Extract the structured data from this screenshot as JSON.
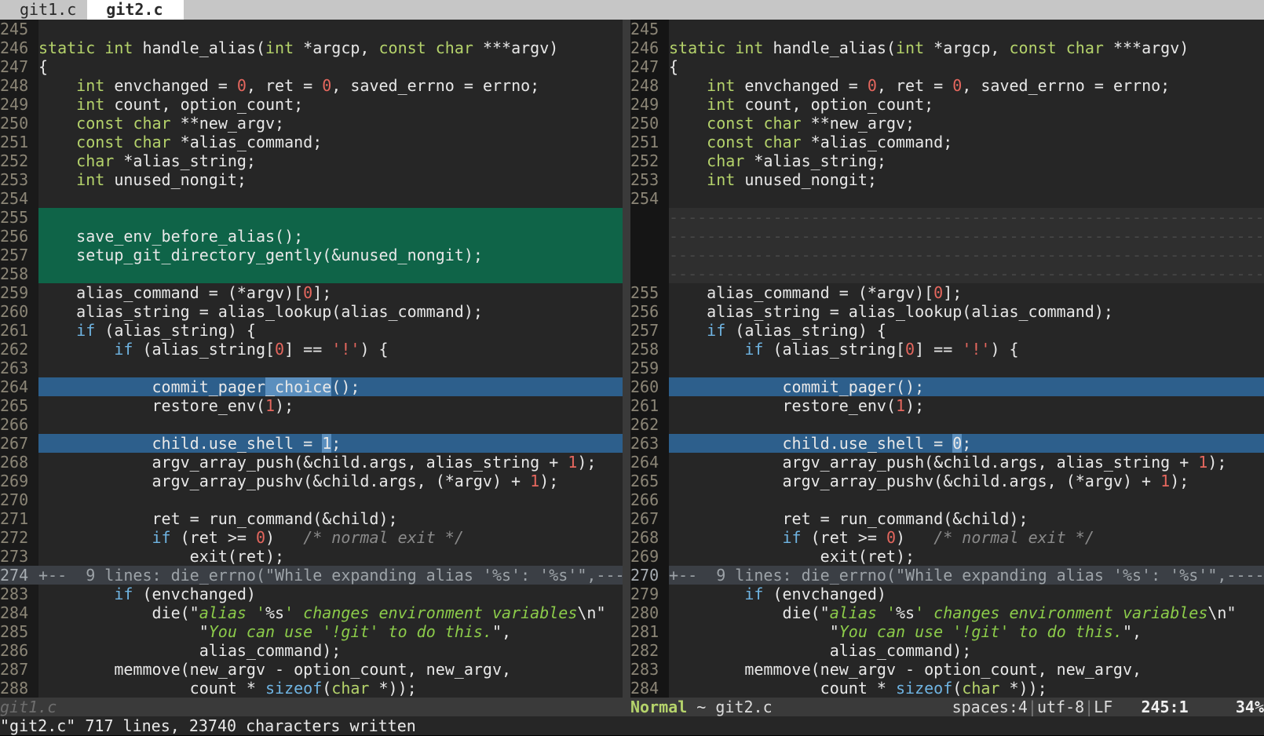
{
  "tabs": [
    {
      "label": "git1.c",
      "active": false
    },
    {
      "label": "git2.c",
      "active": true
    }
  ],
  "colors": {
    "bg": "#262626",
    "added": "#0f6448",
    "changed": "#2d5f8c",
    "changed_text": "#5b8fbe",
    "keyword": "#b5d36b",
    "control": "#6fb4e2",
    "number": "#e5675e",
    "string": "#8ccc4a"
  },
  "left": [
    {
      "n": "245",
      "s": []
    },
    {
      "n": "246",
      "s": [
        [
          "k",
          "static"
        ],
        [
          "",
          " "
        ],
        [
          "k",
          "int"
        ],
        [
          "",
          " handle_alias("
        ],
        [
          "k",
          "int"
        ],
        [
          "",
          " *argcp, "
        ],
        [
          "k",
          "const"
        ],
        [
          "",
          " "
        ],
        [
          "k",
          "char"
        ],
        [
          "",
          " ***argv)"
        ]
      ]
    },
    {
      "n": "247",
      "s": [
        [
          "",
          "{"
        ]
      ]
    },
    {
      "n": "248",
      "s": [
        [
          "",
          "    "
        ],
        [
          "k",
          "int"
        ],
        [
          "",
          " envchanged = "
        ],
        [
          "n",
          "0"
        ],
        [
          "",
          ", ret = "
        ],
        [
          "n",
          "0"
        ],
        [
          "",
          ", saved_errno = errno;"
        ]
      ]
    },
    {
      "n": "249",
      "s": [
        [
          "",
          "    "
        ],
        [
          "k",
          "int"
        ],
        [
          "",
          " count, option_count;"
        ]
      ]
    },
    {
      "n": "250",
      "s": [
        [
          "",
          "    "
        ],
        [
          "k",
          "const"
        ],
        [
          "",
          " "
        ],
        [
          "k",
          "char"
        ],
        [
          "",
          " **new_argv;"
        ]
      ]
    },
    {
      "n": "251",
      "s": [
        [
          "",
          "    "
        ],
        [
          "k",
          "const"
        ],
        [
          "",
          " "
        ],
        [
          "k",
          "char"
        ],
        [
          "",
          " *alias_command;"
        ]
      ]
    },
    {
      "n": "252",
      "s": [
        [
          "",
          "    "
        ],
        [
          "k",
          "char"
        ],
        [
          "",
          " *alias_string;"
        ]
      ]
    },
    {
      "n": "253",
      "s": [
        [
          "",
          "    "
        ],
        [
          "k",
          "int"
        ],
        [
          "",
          " unused_nongit;"
        ]
      ]
    },
    {
      "n": "254",
      "s": []
    },
    {
      "n": "255",
      "t": "add",
      "s": []
    },
    {
      "n": "256",
      "t": "add",
      "s": [
        [
          "",
          "    save_env_before_alias();"
        ]
      ]
    },
    {
      "n": "257",
      "t": "add",
      "s": [
        [
          "",
          "    setup_git_directory_gently(&unused_nongit);"
        ]
      ]
    },
    {
      "n": "258",
      "t": "add",
      "s": []
    },
    {
      "n": "259",
      "s": [
        [
          "",
          "    alias_command = (*argv)["
        ],
        [
          "n",
          "0"
        ],
        [
          "",
          "];"
        ]
      ]
    },
    {
      "n": "260",
      "s": [
        [
          "",
          "    alias_string = alias_lookup(alias_command);"
        ]
      ]
    },
    {
      "n": "261",
      "s": [
        [
          "",
          "    "
        ],
        [
          "c",
          "if"
        ],
        [
          "",
          " (alias_string) {"
        ]
      ]
    },
    {
      "n": "262",
      "s": [
        [
          "",
          "        "
        ],
        [
          "c",
          "if"
        ],
        [
          "",
          " (alias_string["
        ],
        [
          "n",
          "0"
        ],
        [
          "",
          "] == "
        ],
        [
          "n",
          "'!'"
        ],
        [
          "",
          ") {"
        ]
      ]
    },
    {
      "n": "263",
      "s": []
    },
    {
      "n": "264",
      "t": "chg",
      "s": [
        [
          "",
          "            commit_pager"
        ],
        [
          "t",
          "_choice"
        ],
        [
          "",
          "();"
        ]
      ]
    },
    {
      "n": "265",
      "s": [
        [
          "",
          "            restore_env("
        ],
        [
          "n",
          "1"
        ],
        [
          "",
          ");"
        ]
      ]
    },
    {
      "n": "266",
      "s": []
    },
    {
      "n": "267",
      "t": "chg",
      "s": [
        [
          "",
          "            child.use_shell = "
        ],
        [
          "t",
          "1"
        ],
        [
          "",
          ";"
        ]
      ]
    },
    {
      "n": "268",
      "s": [
        [
          "",
          "            argv_array_push(&child.args, alias_string + "
        ],
        [
          "n",
          "1"
        ],
        [
          "",
          ");"
        ]
      ]
    },
    {
      "n": "269",
      "s": [
        [
          "",
          "            argv_array_pushv(&child.args, (*argv) + "
        ],
        [
          "n",
          "1"
        ],
        [
          "",
          ");"
        ]
      ]
    },
    {
      "n": "270",
      "s": []
    },
    {
      "n": "271",
      "s": [
        [
          "",
          "            ret = run_command(&child);"
        ]
      ]
    },
    {
      "n": "272",
      "s": [
        [
          "",
          "            "
        ],
        [
          "c",
          "if"
        ],
        [
          "",
          " (ret >= "
        ],
        [
          "n",
          "0"
        ],
        [
          "",
          ")   "
        ],
        [
          "m",
          "/* normal exit */"
        ]
      ]
    },
    {
      "n": "273",
      "s": [
        [
          "",
          "                exit(ret);"
        ]
      ]
    },
    {
      "n": "274",
      "t": "fold",
      "s": [
        [
          "",
          "+--  9 lines: die_errno(\"While expanding alias '%s': '%s'\",---------------"
        ]
      ]
    },
    {
      "n": "283",
      "s": [
        [
          "",
          "        "
        ],
        [
          "c",
          "if"
        ],
        [
          "",
          " (envchanged)"
        ]
      ]
    },
    {
      "n": "284",
      "s": [
        [
          "",
          "            die(\""
        ],
        [
          "s",
          "alias '"
        ],
        [
          "",
          "%s"
        ],
        [
          "s",
          "' changes environment variables"
        ],
        [
          "",
          "\\n\""
        ]
      ]
    },
    {
      "n": "285",
      "s": [
        [
          "",
          "                 \""
        ],
        [
          "s",
          "You can use '!git' to do this."
        ],
        [
          "",
          "\","
        ]
      ]
    },
    {
      "n": "286",
      "s": [
        [
          "",
          "                 alias_command);"
        ]
      ]
    },
    {
      "n": "287",
      "s": [
        [
          "",
          "        memmove(new_argv - option_count, new_argv,"
        ]
      ]
    },
    {
      "n": "288",
      "s": [
        [
          "",
          "                count * "
        ],
        [
          "c",
          "sizeof"
        ],
        [
          "",
          "("
        ],
        [
          "k",
          "char"
        ],
        [
          "",
          " *));"
        ]
      ]
    }
  ],
  "right": [
    {
      "n": "245",
      "s": []
    },
    {
      "n": "246",
      "s": [
        [
          "k",
          "static"
        ],
        [
          "",
          " "
        ],
        [
          "k",
          "int"
        ],
        [
          "",
          " handle_alias("
        ],
        [
          "k",
          "int"
        ],
        [
          "",
          " *argcp, "
        ],
        [
          "k",
          "const"
        ],
        [
          "",
          " "
        ],
        [
          "k",
          "char"
        ],
        [
          "",
          " ***argv)"
        ]
      ]
    },
    {
      "n": "247",
      "s": [
        [
          "",
          "{"
        ]
      ]
    },
    {
      "n": "248",
      "s": [
        [
          "",
          "    "
        ],
        [
          "k",
          "int"
        ],
        [
          "",
          " envchanged = "
        ],
        [
          "n",
          "0"
        ],
        [
          "",
          ", ret = "
        ],
        [
          "n",
          "0"
        ],
        [
          "",
          ", saved_errno = errno;"
        ]
      ]
    },
    {
      "n": "249",
      "s": [
        [
          "",
          "    "
        ],
        [
          "k",
          "int"
        ],
        [
          "",
          " count, option_count;"
        ]
      ]
    },
    {
      "n": "250",
      "s": [
        [
          "",
          "    "
        ],
        [
          "k",
          "const"
        ],
        [
          "",
          " "
        ],
        [
          "k",
          "char"
        ],
        [
          "",
          " **new_argv;"
        ]
      ]
    },
    {
      "n": "251",
      "s": [
        [
          "",
          "    "
        ],
        [
          "k",
          "const"
        ],
        [
          "",
          " "
        ],
        [
          "k",
          "char"
        ],
        [
          "",
          " *alias_command;"
        ]
      ]
    },
    {
      "n": "252",
      "s": [
        [
          "",
          "    "
        ],
        [
          "k",
          "char"
        ],
        [
          "",
          " *alias_string;"
        ]
      ]
    },
    {
      "n": "253",
      "s": [
        [
          "",
          "    "
        ],
        [
          "k",
          "int"
        ],
        [
          "",
          " unused_nongit;"
        ]
      ]
    },
    {
      "n": "254",
      "s": []
    },
    {
      "n": "",
      "t": "fill",
      "s": [
        [
          "",
          "------------------------------------------------------------------------------------------"
        ]
      ]
    },
    {
      "n": "",
      "t": "fill",
      "s": [
        [
          "",
          "------------------------------------------------------------------------------------------"
        ]
      ]
    },
    {
      "n": "",
      "t": "fill",
      "s": [
        [
          "",
          "------------------------------------------------------------------------------------------"
        ]
      ]
    },
    {
      "n": "",
      "t": "fill",
      "s": [
        [
          "",
          "------------------------------------------------------------------------------------------"
        ]
      ]
    },
    {
      "n": "255",
      "s": [
        [
          "",
          "    alias_command = (*argv)["
        ],
        [
          "n",
          "0"
        ],
        [
          "",
          "];"
        ]
      ]
    },
    {
      "n": "256",
      "s": [
        [
          "",
          "    alias_string = alias_lookup(alias_command);"
        ]
      ]
    },
    {
      "n": "257",
      "s": [
        [
          "",
          "    "
        ],
        [
          "c",
          "if"
        ],
        [
          "",
          " (alias_string) {"
        ]
      ]
    },
    {
      "n": "258",
      "s": [
        [
          "",
          "        "
        ],
        [
          "c",
          "if"
        ],
        [
          "",
          " (alias_string["
        ],
        [
          "n",
          "0"
        ],
        [
          "",
          "] == "
        ],
        [
          "n",
          "'!'"
        ],
        [
          "",
          ") {"
        ]
      ]
    },
    {
      "n": "259",
      "s": []
    },
    {
      "n": "260",
      "t": "chg",
      "s": [
        [
          "",
          "            commit_pager();"
        ]
      ]
    },
    {
      "n": "261",
      "s": [
        [
          "",
          "            restore_env("
        ],
        [
          "n",
          "1"
        ],
        [
          "",
          ");"
        ]
      ]
    },
    {
      "n": "262",
      "s": []
    },
    {
      "n": "263",
      "t": "chg",
      "s": [
        [
          "",
          "            child.use_shell = "
        ],
        [
          "t",
          "0"
        ],
        [
          "",
          ";"
        ]
      ]
    },
    {
      "n": "264",
      "s": [
        [
          "",
          "            argv_array_push(&child.args, alias_string + "
        ],
        [
          "n",
          "1"
        ],
        [
          "",
          ");"
        ]
      ]
    },
    {
      "n": "265",
      "s": [
        [
          "",
          "            argv_array_pushv(&child.args, (*argv) + "
        ],
        [
          "n",
          "1"
        ],
        [
          "",
          ");"
        ]
      ]
    },
    {
      "n": "266",
      "s": []
    },
    {
      "n": "267",
      "s": [
        [
          "",
          "            ret = run_command(&child);"
        ]
      ]
    },
    {
      "n": "268",
      "s": [
        [
          "",
          "            "
        ],
        [
          "c",
          "if"
        ],
        [
          "",
          " (ret >= "
        ],
        [
          "n",
          "0"
        ],
        [
          "",
          ")   "
        ],
        [
          "m",
          "/* normal exit */"
        ]
      ]
    },
    {
      "n": "269",
      "s": [
        [
          "",
          "                exit(ret);"
        ]
      ]
    },
    {
      "n": "270",
      "t": "fold",
      "s": [
        [
          "",
          "+--  9 lines: die_errno(\"While expanding alias '%s': '%s'\",---------------"
        ]
      ]
    },
    {
      "n": "279",
      "s": [
        [
          "",
          "        "
        ],
        [
          "c",
          "if"
        ],
        [
          "",
          " (envchanged)"
        ]
      ]
    },
    {
      "n": "280",
      "s": [
        [
          "",
          "            die(\""
        ],
        [
          "s",
          "alias '"
        ],
        [
          "",
          "%s"
        ],
        [
          "s",
          "' changes environment variables"
        ],
        [
          "",
          "\\n\""
        ]
      ]
    },
    {
      "n": "281",
      "s": [
        [
          "",
          "                 \""
        ],
        [
          "s",
          "You can use '!git' to do this."
        ],
        [
          "",
          "\","
        ]
      ]
    },
    {
      "n": "282",
      "s": [
        [
          "",
          "                 alias_command);"
        ]
      ]
    },
    {
      "n": "283",
      "s": [
        [
          "",
          "        memmove(new_argv - option_count, new_argv,"
        ]
      ]
    },
    {
      "n": "284",
      "s": [
        [
          "",
          "                count * "
        ],
        [
          "c",
          "sizeof"
        ],
        [
          "",
          "("
        ],
        [
          "k",
          "char"
        ],
        [
          "",
          " *));"
        ]
      ]
    }
  ],
  "status": {
    "left_file": "git1.c",
    "mode": "Normal",
    "right_file": " ~ git2.c",
    "indent": "spaces:4",
    "encoding": "utf-8",
    "format": "LF",
    "position": "245:1",
    "percent": "34%"
  },
  "cmdline": "\"git2.c\" 717 lines, 23740 characters written"
}
